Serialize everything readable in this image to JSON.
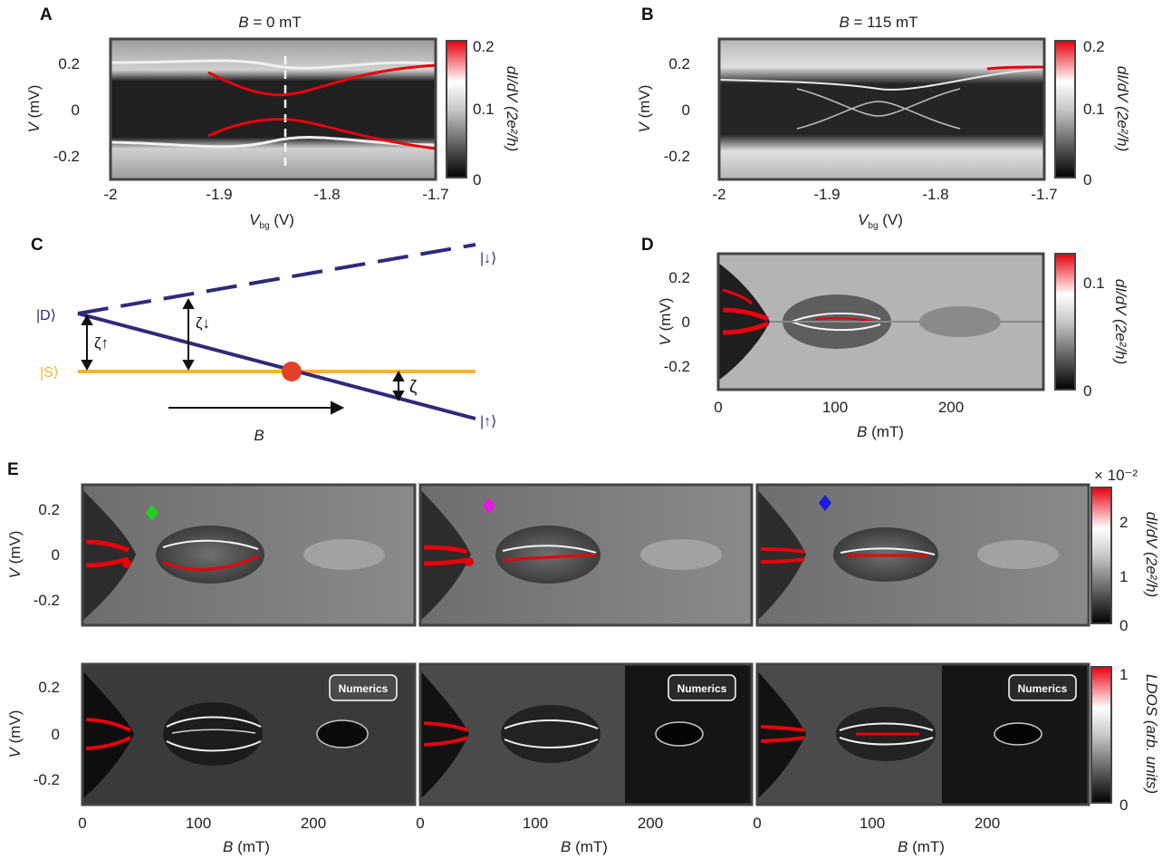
{
  "panels": {
    "A": {
      "label": "A",
      "title_var": "B",
      "title_rest": " = 0 mT",
      "yticks": [
        "0.2",
        "0",
        "-0.2"
      ],
      "xticks": [
        "-2",
        "-1.9",
        "-1.8",
        "-1.7"
      ],
      "ylabel_var": "V",
      "ylabel_unit": " (mV)",
      "xlabel_var": "V",
      "xlabel_sub": "bg",
      "xlabel_unit": " (V)",
      "cbar_ticks": [
        "0.2",
        "0.1",
        "0"
      ],
      "cbar_label": "dI/dV (2e²/h)"
    },
    "B": {
      "label": "B",
      "title_var": "B",
      "title_rest": " = 115 mT",
      "yticks": [
        "0.2",
        "0",
        "-0.2"
      ],
      "xticks": [
        "-2",
        "-1.9",
        "-1.8",
        "-1.7"
      ],
      "ylabel_var": "V",
      "ylabel_unit": " (mV)",
      "xlabel_var": "V",
      "xlabel_sub": "bg",
      "xlabel_unit": " (V)",
      "cbar_ticks": [
        "0.2",
        "0.1",
        "0"
      ],
      "cbar_label": "dI/dV (2e²/h)"
    },
    "C": {
      "label": "C",
      "state_D": "|D⟩",
      "state_S": "|S⟩",
      "state_up": "|↑⟩",
      "state_down": "|↓⟩",
      "zeta_up": "ζ↑",
      "zeta_down": "ζ↓",
      "zeta": "ζ",
      "arrow_label": "B",
      "colors": {
        "doublet": "#2e2a7a",
        "singlet": "#f7b52a",
        "crossing": "#e2402b"
      }
    },
    "D": {
      "label": "D",
      "yticks": [
        "0.2",
        "0",
        "-0.2"
      ],
      "xticks": [
        "0",
        "100",
        "200"
      ],
      "ylabel_var": "V",
      "ylabel_unit": " (mV)",
      "xlabel_var": "B",
      "xlabel_unit": " (mT)",
      "cbar_ticks": [
        "0.1",
        "0"
      ],
      "cbar_label": "dI/dV (2e²/h)"
    },
    "E": {
      "label": "E",
      "yticks": [
        "0.2",
        "0",
        "-0.2"
      ],
      "xticks": [
        "0",
        "100",
        "200"
      ],
      "ylabel_var": "V",
      "ylabel_unit": " (mV)",
      "xlabel_var": "B",
      "xlabel_unit": " (mT)",
      "cbar_top_exp": "× 10⁻²",
      "cbar_top_ticks": [
        "2",
        "1",
        "0"
      ],
      "cbar_top_label": "dI/dV (2e²/h)",
      "cbar_bot_ticks": [
        "1",
        "0"
      ],
      "cbar_bot_label": "LDOS (arb. units)",
      "numerics_label": "Numerics",
      "markers": [
        {
          "color": "#22d022"
        },
        {
          "color": "#e01ae0"
        },
        {
          "color": "#1a1ae0"
        }
      ]
    }
  }
}
